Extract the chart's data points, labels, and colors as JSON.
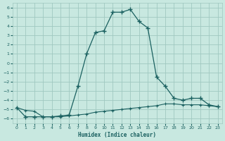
{
  "title": "",
  "xlabel": "Humidex (Indice chaleur)",
  "ylabel": "",
  "bg_color": "#c8e8e0",
  "grid_color": "#a0c8c0",
  "line_color": "#1a6060",
  "xlim": [
    -0.5,
    23.5
  ],
  "ylim": [
    -6.5,
    6.5
  ],
  "xticks": [
    0,
    1,
    2,
    3,
    4,
    5,
    6,
    7,
    8,
    9,
    10,
    11,
    12,
    13,
    14,
    15,
    16,
    17,
    18,
    19,
    20,
    21,
    22,
    23
  ],
  "yticks": [
    -6,
    -5,
    -4,
    -3,
    -2,
    -1,
    0,
    1,
    2,
    3,
    4,
    5,
    6
  ],
  "line1_x": [
    0,
    1,
    2,
    3,
    4,
    5,
    6,
    7,
    8,
    9,
    10,
    11,
    12,
    13,
    14,
    15,
    16,
    17,
    18,
    19,
    20,
    21,
    22,
    23
  ],
  "line1_y": [
    -4.8,
    -5.8,
    -5.8,
    -5.8,
    -5.8,
    -5.7,
    -5.6,
    -2.5,
    1.0,
    3.3,
    3.5,
    5.5,
    5.5,
    5.8,
    4.5,
    3.8,
    -1.5,
    -2.5,
    -3.8,
    -4.0,
    -3.8,
    -3.8,
    -4.5,
    -4.7
  ],
  "line2_x": [
    0,
    1,
    2,
    3,
    4,
    5,
    6,
    7,
    8,
    9,
    10,
    11,
    12,
    13,
    14,
    15,
    16,
    17,
    18,
    19,
    20,
    21,
    22,
    23
  ],
  "line2_y": [
    -4.8,
    -5.1,
    -5.2,
    -5.8,
    -5.8,
    -5.8,
    -5.7,
    -5.6,
    -5.5,
    -5.3,
    -5.2,
    -5.1,
    -5.0,
    -4.9,
    -4.8,
    -4.7,
    -4.6,
    -4.4,
    -4.4,
    -4.5,
    -4.5,
    -4.5,
    -4.6,
    -4.7
  ]
}
